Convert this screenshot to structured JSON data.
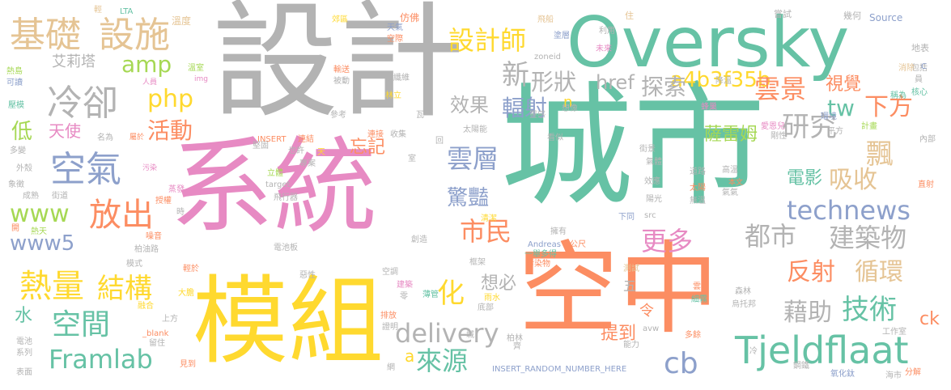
{
  "palette": {
    "green": "#66c2a5",
    "pink": "#e78ac3",
    "yellow": "#ffd92f",
    "gray": "#b3b3b3",
    "orange": "#fc8d62",
    "blue": "#8da0cb",
    "lime": "#a6d854",
    "tan": "#e5c494"
  },
  "words": [
    {
      "text": "城市",
      "color": "green"
    },
    {
      "text": "系統",
      "color": "pink"
    },
    {
      "text": "設計",
      "color": "gray"
    },
    {
      "text": "空中",
      "color": "orange"
    },
    {
      "text": "模組",
      "color": "yellow"
    },
    {
      "text": "Oversky",
      "color": "green"
    },
    {
      "text": "Tjeldflaat",
      "color": "green"
    },
    {
      "text": "基礎",
      "color": "tan"
    },
    {
      "text": "設施",
      "color": "tan"
    },
    {
      "text": "冷卻",
      "color": "gray"
    },
    {
      "text": "空氣",
      "color": "blue"
    },
    {
      "text": "amp",
      "color": "lime"
    },
    {
      "text": "php",
      "color": "yellow"
    },
    {
      "text": "活動",
      "color": "orange"
    },
    {
      "text": "天使",
      "color": "pink"
    },
    {
      "text": "低",
      "color": "lime"
    },
    {
      "text": "艾莉塔",
      "color": "gray"
    },
    {
      "text": "www",
      "color": "lime"
    },
    {
      "text": "放出",
      "color": "orange"
    },
    {
      "text": "www5",
      "color": "blue"
    },
    {
      "text": "熱量",
      "color": "yellow"
    },
    {
      "text": "結構",
      "color": "yellow"
    },
    {
      "text": "空間",
      "color": "green"
    },
    {
      "text": "水",
      "color": "green"
    },
    {
      "text": "Framlab",
      "color": "green"
    },
    {
      "text": "設計師",
      "color": "yellow"
    },
    {
      "text": "a4b3f35b",
      "color": "yellow"
    },
    {
      "text": "新",
      "color": "gray"
    },
    {
      "text": "形狀",
      "color": "gray"
    },
    {
      "text": "探索",
      "color": "gray"
    },
    {
      "text": "效果",
      "color": "gray"
    },
    {
      "text": "輻射",
      "color": "blue"
    },
    {
      "text": "href",
      "color": "gray"
    },
    {
      "text": "雲景",
      "color": "orange"
    },
    {
      "text": "視覺",
      "color": "orange"
    },
    {
      "text": "tw",
      "color": "green"
    },
    {
      "text": "下方",
      "color": "orange"
    },
    {
      "text": "薩雷姆",
      "color": "lime"
    },
    {
      "text": "研究",
      "color": "gray"
    },
    {
      "text": "飄",
      "color": "tan"
    },
    {
      "text": "吸收",
      "color": "tan"
    },
    {
      "text": "雲層",
      "color": "blue"
    },
    {
      "text": "忘記",
      "color": "orange"
    },
    {
      "text": "驚豔",
      "color": "blue"
    },
    {
      "text": "電影",
      "color": "green"
    },
    {
      "text": "technews",
      "color": "blue"
    },
    {
      "text": "市民",
      "color": "orange"
    },
    {
      "text": "更多",
      "color": "pink"
    },
    {
      "text": "都市",
      "color": "gray"
    },
    {
      "text": "建築物",
      "color": "gray"
    },
    {
      "text": "化",
      "color": "yellow"
    },
    {
      "text": "想必",
      "color": "gray"
    },
    {
      "text": "反射",
      "color": "orange"
    },
    {
      "text": "循環",
      "color": "tan"
    },
    {
      "text": "藉助",
      "color": "gray"
    },
    {
      "text": "技術",
      "color": "green"
    },
    {
      "text": "delivery",
      "color": "gray"
    },
    {
      "text": "來源",
      "color": "green"
    },
    {
      "text": "提到",
      "color": "orange"
    },
    {
      "text": "cb",
      "color": "blue"
    },
    {
      "text": "ck",
      "color": "orange"
    },
    {
      "text": "令",
      "color": "orange"
    },
    {
      "text": "a",
      "color": "yellow"
    },
    {
      "text": "n",
      "color": "yellow"
    },
    {
      "text": "五",
      "color": "gray"
    },
    {
      "text": "LTA",
      "color": "green"
    },
    {
      "text": "輕",
      "color": "tan"
    },
    {
      "text": "溫度",
      "color": "tan"
    },
    {
      "text": "郊區",
      "color": "yellow"
    },
    {
      "text": "天氣",
      "color": "blue"
    },
    {
      "text": "空際",
      "color": "orange"
    },
    {
      "text": "仿佛",
      "color": "orange"
    },
    {
      "text": "飛船",
      "color": "tan"
    },
    {
      "text": "住",
      "color": "tan"
    },
    {
      "text": "嘗試",
      "color": "gray"
    },
    {
      "text": "幾何",
      "color": "gray"
    },
    {
      "text": "Source",
      "color": "blue"
    },
    {
      "text": "地表",
      "color": "gray"
    },
    {
      "text": "利用",
      "color": "gray"
    },
    {
      "text": "未來",
      "color": "pink"
    },
    {
      "text": "塗層",
      "color": "blue"
    },
    {
      "text": "zoneid",
      "color": "gray"
    },
    {
      "text": "包括",
      "color": "gray"
    },
    {
      "text": "熱島",
      "color": "lime"
    },
    {
      "text": "可讀",
      "color": "blue"
    },
    {
      "text": "溫室",
      "color": "lime"
    },
    {
      "text": "img",
      "color": "pink"
    },
    {
      "text": "輸送",
      "color": "orange"
    },
    {
      "text": "被動",
      "color": "gray"
    },
    {
      "text": "破纖維",
      "color": "gray"
    },
    {
      "text": "林立",
      "color": "yellow"
    },
    {
      "text": "人員",
      "color": "pink"
    },
    {
      "text": "消除",
      "color": "tan"
    },
    {
      "text": "稱為",
      "color": "green"
    },
    {
      "text": "核心",
      "color": "green"
    },
    {
      "text": "降溫",
      "color": "gray"
    },
    {
      "text": "想像",
      "color": "gray"
    },
    {
      "text": "壓模",
      "color": "green"
    },
    {
      "text": "參考",
      "color": "gray"
    },
    {
      "text": "瓦",
      "color": "gray"
    },
    {
      "text": "太陽能",
      "color": "gray"
    },
    {
      "text": "靈感",
      "color": "gray"
    },
    {
      "text": "環境",
      "color": "blue"
    },
    {
      "text": "蜂巢",
      "color": "pink"
    },
    {
      "text": "平方",
      "color": "gray"
    },
    {
      "text": "剛性",
      "color": "gray"
    },
    {
      "text": "計畫",
      "color": "lime"
    },
    {
      "text": "愛恩兒",
      "color": "pink"
    },
    {
      "text": "名為",
      "color": "gray"
    },
    {
      "text": "屬於",
      "color": "orange"
    },
    {
      "text": "INSERT",
      "color": "orange"
    },
    {
      "text": "連結",
      "color": "orange"
    },
    {
      "text": "天",
      "color": "yellow"
    },
    {
      "text": "連接",
      "color": "orange"
    },
    {
      "text": "收集",
      "color": "gray"
    },
    {
      "text": "也許",
      "color": "gray"
    },
    {
      "text": "回",
      "color": "gray"
    },
    {
      "text": "看似",
      "color": "gray"
    },
    {
      "text": "街景",
      "color": "gray"
    },
    {
      "text": "內部",
      "color": "gray"
    },
    {
      "text": "多變",
      "color": "gray"
    },
    {
      "text": "外殼",
      "color": "gray"
    },
    {
      "text": "象徵",
      "color": "gray"
    },
    {
      "text": "成熟",
      "color": "gray"
    },
    {
      "text": "污染",
      "color": "pink"
    },
    {
      "text": "堅固",
      "color": "gray"
    },
    {
      "text": "專案",
      "color": "gray"
    },
    {
      "text": "室",
      "color": "gray"
    },
    {
      "text": "氣體",
      "color": "gray"
    },
    {
      "text": "高溫",
      "color": "gray"
    },
    {
      "text": "本文",
      "color": "orange"
    },
    {
      "text": "氣氣",
      "color": "gray"
    },
    {
      "text": "直射",
      "color": "orange"
    },
    {
      "text": "立體",
      "color": "lime"
    },
    {
      "text": "target",
      "color": "gray"
    },
    {
      "text": "飛行器",
      "color": "gray"
    },
    {
      "text": "蒸發",
      "color": "pink"
    },
    {
      "text": "授權",
      "color": "orange"
    },
    {
      "text": "街道",
      "color": "gray"
    },
    {
      "text": "時",
      "color": "gray"
    },
    {
      "text": "效應",
      "color": "gray"
    },
    {
      "text": "道路",
      "color": "gray"
    },
    {
      "text": "太陽",
      "color": "orange"
    },
    {
      "text": "陽光",
      "color": "gray"
    },
    {
      "text": "無溫",
      "color": "gray"
    },
    {
      "text": "下同",
      "color": "blue"
    },
    {
      "text": "清潔",
      "color": "yellow"
    },
    {
      "text": "src",
      "color": "gray"
    },
    {
      "text": "開",
      "color": "orange"
    },
    {
      "text": "熱天",
      "color": "lime"
    },
    {
      "text": "噪音",
      "color": "orange"
    },
    {
      "text": "柏油路",
      "color": "gray"
    },
    {
      "text": "模式",
      "color": "gray"
    },
    {
      "text": "輕於",
      "color": "orange"
    },
    {
      "text": "電池板",
      "color": "gray"
    },
    {
      "text": "創造",
      "color": "gray"
    },
    {
      "text": "擁有",
      "color": "gray"
    },
    {
      "text": "公尺",
      "color": "orange"
    },
    {
      "text": "Andreas",
      "color": "blue"
    },
    {
      "text": "一舉多得",
      "color": "green"
    },
    {
      "text": "框架",
      "color": "gray"
    },
    {
      "text": "污染物",
      "color": "orange"
    },
    {
      "text": "測試",
      "color": "tan"
    },
    {
      "text": "大膽",
      "color": "yellow"
    },
    {
      "text": "融合",
      "color": "yellow"
    },
    {
      "text": "惡性",
      "color": "gray"
    },
    {
      "text": "空調",
      "color": "gray"
    },
    {
      "text": "建築",
      "color": "pink"
    },
    {
      "text": "零",
      "color": "gray"
    },
    {
      "text": "薄管",
      "color": "green"
    },
    {
      "text": "雨水",
      "color": "yellow"
    },
    {
      "text": "底部",
      "color": "gray"
    },
    {
      "text": "雲",
      "color": "orange"
    },
    {
      "text": "細霧",
      "color": "green"
    },
    {
      "text": "森林",
      "color": "gray"
    },
    {
      "text": "烏托邦",
      "color": "gray"
    },
    {
      "text": "上方",
      "color": "gray"
    },
    {
      "text": "排放",
      "color": "orange"
    },
    {
      "text": "證明",
      "color": "gray"
    },
    {
      "text": "_blank",
      "color": "orange"
    },
    {
      "text": "電池",
      "color": "gray"
    },
    {
      "text": "留住",
      "color": "gray"
    },
    {
      "text": "系列",
      "color": "gray"
    },
    {
      "text": "城",
      "color": "gray"
    },
    {
      "text": "柏林",
      "color": "gray"
    },
    {
      "text": "齊",
      "color": "gray"
    },
    {
      "text": "avw",
      "color": "gray"
    },
    {
      "text": "多餘",
      "color": "orange"
    },
    {
      "text": "能力",
      "color": "gray"
    },
    {
      "text": "工作室",
      "color": "gray"
    },
    {
      "text": "冷",
      "color": "gray"
    },
    {
      "text": "表面",
      "color": "gray"
    },
    {
      "text": "見到",
      "color": "orange"
    },
    {
      "text": "INSERT_RANDOM_NUMBER_HERE",
      "color": "blue"
    },
    {
      "text": "網",
      "color": "gray"
    },
    {
      "text": "鋼鐵",
      "color": "gray"
    },
    {
      "text": "氧化鈦",
      "color": "blue"
    },
    {
      "text": "海市",
      "color": "gray"
    },
    {
      "text": "分解",
      "color": "orange"
    },
    {
      "text": "員",
      "color": "gray"
    },
    {
      "text": "C",
      "color": "blue"
    }
  ]
}
